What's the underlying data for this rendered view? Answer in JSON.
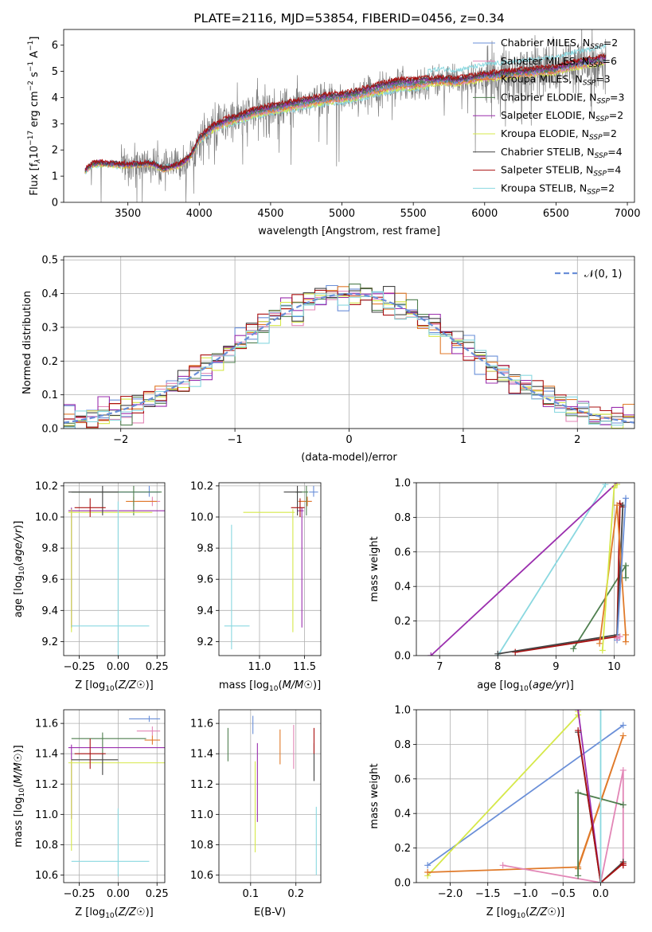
{
  "colors": {
    "chabrier_miles": "#6a8fd8",
    "salpeter_miles": "#e286b6",
    "kroupa_miles": "#e07a2a",
    "chabrier_elodie": "#4f7f4f",
    "salpeter_elodie": "#9b2fae",
    "kroupa_elodie": "#d6e84a",
    "chabrier_stelib": "#444444",
    "salpeter_stelib": "#aa1111",
    "kroupa_stelib": "#8ad8e0",
    "data": "#808080",
    "normal": "#6a8fd8"
  },
  "chart_data": [
    {
      "type": "line",
      "title": "PLATE=2116, MJD=53854, FIBERID=0456, z=0.34",
      "xlabel": "wavelength [Angstrom, rest frame]",
      "ylabel_parts": [
        "Flux [f",
        "λ",
        "10",
        "−17",
        " erg cm",
        "−2",
        " s",
        "−1",
        " A",
        "−1",
        "]"
      ],
      "xlim": [
        3050,
        7050
      ],
      "ylim": [
        0,
        6.6
      ],
      "xticks": [
        "3500",
        "4000",
        "4500",
        "5000",
        "5500",
        "6000",
        "6500",
        "7000"
      ],
      "yticks": [
        "0",
        "1",
        "2",
        "3",
        "4",
        "5",
        "6"
      ],
      "legend": [
        {
          "name": "Chabrier MILES, N",
          "sub": "SSP",
          "tail": "=2",
          "color": "chabrier_miles"
        },
        {
          "name": "Salpeter MILES, N",
          "sub": "SSP",
          "tail": "=6",
          "color": "salpeter_miles"
        },
        {
          "name": "Kroupa MILES, N",
          "sub": "SSP",
          "tail": "=3",
          "color": "kroupa_miles"
        },
        {
          "name": "Chabrier ELODIE, N",
          "sub": "SSP",
          "tail": "=3",
          "color": "chabrier_elodie"
        },
        {
          "name": "Salpeter ELODIE, N",
          "sub": "SSP",
          "tail": "=2",
          "color": "salpeter_elodie"
        },
        {
          "name": "Kroupa ELODIE, N",
          "sub": "SSP",
          "tail": "=2",
          "color": "kroupa_elodie"
        },
        {
          "name": "Chabrier STELIB, N",
          "sub": "SSP",
          "tail": "=4",
          "color": "chabrier_stelib"
        },
        {
          "name": "Salpeter STELIB, N",
          "sub": "SSP",
          "tail": "=4",
          "color": "salpeter_stelib"
        },
        {
          "name": "Kroupa STELIB, N",
          "sub": "SSP",
          "tail": "=2",
          "color": "kroupa_stelib"
        }
      ],
      "continuum": {
        "x": [
          3200,
          3250,
          3300,
          3400,
          3500,
          3600,
          3650,
          3700,
          3750,
          3800,
          3850,
          3900,
          3950,
          4000,
          4100,
          4200,
          4300,
          4400,
          4500,
          4600,
          4700,
          4800,
          4900,
          5000,
          5100,
          5200,
          5300,
          5400,
          5500,
          5600,
          5700,
          5800,
          5900,
          6000,
          6100,
          6200,
          6300,
          6400,
          6500,
          6600,
          6700,
          6800,
          6900
        ],
        "y": [
          1.2,
          1.45,
          1.5,
          1.45,
          1.42,
          1.45,
          1.48,
          1.4,
          1.25,
          1.35,
          1.4,
          1.55,
          1.85,
          2.4,
          2.85,
          3.1,
          3.25,
          3.45,
          3.55,
          3.65,
          3.75,
          3.85,
          3.95,
          4.0,
          4.1,
          4.25,
          4.4,
          4.5,
          4.5,
          4.6,
          4.65,
          4.6,
          4.7,
          4.8,
          4.85,
          4.9,
          4.95,
          5.0,
          5.05,
          5.2,
          5.3,
          5.4,
          5.5
        ]
      },
      "data_range": [
        3200,
        6850
      ]
    },
    {
      "type": "histogram",
      "xlabel": "(data-model)/error",
      "ylabel": "Normed distribution",
      "xlim": [
        -2.5,
        2.5
      ],
      "ylim": [
        0,
        0.51
      ],
      "xticks": [
        "−2",
        "−1",
        "0",
        "1",
        "2"
      ],
      "yticks": [
        "0.0",
        "0.1",
        "0.2",
        "0.3",
        "0.4",
        "0.5"
      ],
      "legend": [
        {
          "name": "𝒩(0, 1)",
          "color": "normal"
        }
      ],
      "bin_width": 0.1
    },
    {
      "type": "scatter",
      "xlabel": "Z [log10(Z/Z☉)]",
      "ylabel": "age [log10(age/yr)]",
      "xlim": [
        -0.35,
        0.3
      ],
      "ylim": [
        9.11,
        10.22
      ],
      "xticks": [
        "−0.25",
        "0.00",
        "0.25"
      ],
      "yticks": [
        "9.2",
        "9.4",
        "9.6",
        "9.8",
        "10.0",
        "10.2"
      ],
      "points": [
        {
          "x": 0.2,
          "y": 10.16,
          "xerr": [
            0.2,
            0.07
          ],
          "yerr": [
            0.03,
            0.04
          ],
          "color": "chabrier_miles"
        },
        {
          "x": 0.22,
          "y": 10.1,
          "xerr": [
            0.1,
            0.05
          ],
          "yerr": [
            0.03,
            0.03
          ],
          "color": "salpeter_miles"
        },
        {
          "x": 0.1,
          "y": 10.1,
          "xerr": [
            0.05,
            0.15
          ],
          "yerr": [
            0.03,
            0.03
          ],
          "color": "kroupa_miles"
        },
        {
          "x": 0.1,
          "y": 10.16,
          "xerr": [
            0.4,
            0.18
          ],
          "yerr": [
            0.15,
            0.04
          ],
          "color": "chabrier_elodie"
        },
        {
          "x": -0.3,
          "y": 10.04,
          "xerr": [
            0.02,
            0.6
          ],
          "yerr": [
            0.75,
            0.02
          ],
          "color": "salpeter_elodie"
        },
        {
          "x": -0.3,
          "y": 10.03,
          "xerr": [
            0.02,
            0.52
          ],
          "yerr": [
            0.77,
            0.02
          ],
          "color": "kroupa_elodie"
        },
        {
          "x": -0.1,
          "y": 10.16,
          "xerr": [
            0.22,
            0.1
          ],
          "yerr": [
            0.15,
            0.04
          ],
          "color": "chabrier_stelib"
        },
        {
          "x": -0.18,
          "y": 10.06,
          "xerr": [
            0.1,
            0.1
          ],
          "yerr": [
            0.06,
            0.06
          ],
          "color": "salpeter_stelib"
        },
        {
          "x": 0.0,
          "y": 9.3,
          "xerr": [
            0.3,
            0.2
          ],
          "yerr": [
            0.2,
            0.8
          ],
          "color": "kroupa_stelib"
        }
      ]
    },
    {
      "type": "scatter",
      "xlabel": "mass [log10(M/M☉)]",
      "ylabel": "",
      "xlim": [
        10.55,
        11.68
      ],
      "ylim": [
        9.11,
        10.22
      ],
      "xticks": [
        "11.0",
        "11.5"
      ],
      "yticks": [
        "9.2",
        "9.4",
        "9.6",
        "9.8",
        "10.0",
        "10.2"
      ],
      "points": [
        {
          "x": 11.6,
          "y": 10.16,
          "xerr": [
            0.05,
            0.05
          ],
          "yerr": [
            0.03,
            0.04
          ],
          "color": "chabrier_miles"
        },
        {
          "x": 11.53,
          "y": 10.1,
          "xerr": [
            0.1,
            0.05
          ],
          "yerr": [
            0.03,
            0.03
          ],
          "color": "salpeter_miles"
        },
        {
          "x": 11.53,
          "y": 10.1,
          "xerr": [
            0.1,
            0.05
          ],
          "yerr": [
            0.03,
            0.03
          ],
          "color": "kroupa_miles"
        },
        {
          "x": 11.52,
          "y": 10.16,
          "xerr": [
            0.12,
            0.02
          ],
          "yerr": [
            0.15,
            0.04
          ],
          "color": "chabrier_elodie"
        },
        {
          "x": 11.47,
          "y": 10.04,
          "xerr": [
            0.05,
            0.02
          ],
          "yerr": [
            0.75,
            0.02
          ],
          "color": "salpeter_elodie"
        },
        {
          "x": 11.37,
          "y": 10.03,
          "xerr": [
            0.55,
            0.02
          ],
          "yerr": [
            0.77,
            0.02
          ],
          "color": "kroupa_elodie"
        },
        {
          "x": 11.42,
          "y": 10.16,
          "xerr": [
            0.15,
            0.05
          ],
          "yerr": [
            0.15,
            0.04
          ],
          "color": "chabrier_stelib"
        },
        {
          "x": 11.45,
          "y": 10.06,
          "xerr": [
            0.1,
            0.05
          ],
          "yerr": [
            0.06,
            0.06
          ],
          "color": "salpeter_stelib"
        },
        {
          "x": 10.69,
          "y": 9.3,
          "xerr": [
            0.08,
            0.2
          ],
          "yerr": [
            0.15,
            0.65
          ],
          "color": "kroupa_stelib"
        }
      ]
    },
    {
      "type": "line",
      "xlabel": "age [log10(age/yr)]",
      "ylabel": "mass weight",
      "xlim": [
        6.6,
        10.35
      ],
      "ylim": [
        0,
        1
      ],
      "xticks": [
        "7",
        "8",
        "9",
        "10"
      ],
      "yticks": [
        "0.0",
        "0.2",
        "0.4",
        "0.6",
        "0.8",
        "1.0"
      ],
      "series": [
        {
          "color": "kroupa_stelib",
          "x": [
            8.0,
            9.85
          ],
          "y": [
            0.0,
            0.99
          ]
        },
        {
          "color": "salpeter_elodie",
          "x": [
            6.85,
            10.05
          ],
          "y": [
            0.0,
            1.0
          ]
        },
        {
          "color": "chabrier_elodie",
          "x": [
            9.3,
            10.2,
            10.2
          ],
          "y": [
            0.04,
            0.52,
            0.45
          ]
        },
        {
          "color": "salpeter_stelib",
          "x": [
            8.3,
            10.05,
            10.1,
            10.15
          ],
          "y": [
            0.02,
            0.11,
            0.88,
            0.86
          ]
        },
        {
          "color": "chabrier_stelib",
          "x": [
            8.0,
            10.05,
            10.15
          ],
          "y": [
            0.01,
            0.12,
            0.87
          ]
        },
        {
          "color": "kroupa_miles",
          "x": [
            9.75,
            10.05,
            10.2,
            10.2
          ],
          "y": [
            0.07,
            0.87,
            0.12,
            0.08
          ]
        },
        {
          "color": "kroupa_elodie",
          "x": [
            9.8,
            10.0,
            10.05
          ],
          "y": [
            0.03,
            0.97,
            0.99
          ]
        },
        {
          "color": "chabrier_miles",
          "x": [
            10.05,
            10.2
          ],
          "y": [
            0.09,
            0.91
          ]
        },
        {
          "color": "salpeter_miles",
          "x": [
            10.05,
            10.1
          ],
          "y": [
            0.1,
            0.11
          ]
        }
      ]
    },
    {
      "type": "scatter",
      "xlabel": "Z [log10(Z/Z☉)]",
      "ylabel": "mass [log10(M/M☉)]",
      "xlim": [
        -0.35,
        0.3
      ],
      "ylim": [
        10.55,
        11.69
      ],
      "xticks": [
        "−0.25",
        "0.00",
        "0.25"
      ],
      "yticks": [
        "10.6",
        "10.8",
        "11.0",
        "11.2",
        "11.4",
        "11.6"
      ],
      "points": [
        {
          "x": 0.2,
          "y": 11.63,
          "xerr": [
            0.13,
            0.07
          ],
          "yerr": [
            0.02,
            0.02
          ],
          "color": "chabrier_miles"
        },
        {
          "x": 0.22,
          "y": 11.55,
          "xerr": [
            0.1,
            0.05
          ],
          "yerr": [
            0.03,
            0.03
          ],
          "color": "salpeter_miles"
        },
        {
          "x": 0.22,
          "y": 11.49,
          "xerr": [
            0.05,
            0.05
          ],
          "yerr": [
            0.03,
            0.03
          ],
          "color": "kroupa_miles"
        },
        {
          "x": -0.1,
          "y": 11.5,
          "xerr": [
            0.2,
            0.28
          ],
          "yerr": [
            0.1,
            0.04
          ],
          "color": "chabrier_elodie"
        },
        {
          "x": -0.3,
          "y": 11.44,
          "xerr": [
            0.02,
            0.6
          ],
          "yerr": [
            0.47,
            0.02
          ],
          "color": "salpeter_elodie"
        },
        {
          "x": -0.3,
          "y": 11.34,
          "xerr": [
            0.02,
            0.6
          ],
          "yerr": [
            0.58,
            0.02
          ],
          "color": "kroupa_elodie"
        },
        {
          "x": -0.1,
          "y": 11.36,
          "xerr": [
            0.2,
            0.1
          ],
          "yerr": [
            0.1,
            0.04
          ],
          "color": "chabrier_stelib"
        },
        {
          "x": -0.18,
          "y": 11.4,
          "xerr": [
            0.1,
            0.1
          ],
          "yerr": [
            0.1,
            0.1
          ],
          "color": "salpeter_stelib"
        },
        {
          "x": 0.0,
          "y": 10.69,
          "xerr": [
            0.3,
            0.2
          ],
          "yerr": [
            0.1,
            0.35
          ],
          "color": "kroupa_stelib"
        }
      ]
    },
    {
      "type": "scatter",
      "xlabel": "E(B-V)",
      "ylabel": "",
      "xlim": [
        0.03,
        0.255
      ],
      "ylim": [
        10.55,
        11.69
      ],
      "xticks": [
        "0.1",
        "0.2"
      ],
      "yticks": [
        "10.6",
        "10.8",
        "11.0",
        "11.2",
        "11.4",
        "11.6"
      ],
      "points": [
        {
          "x": 0.105,
          "y": 11.6,
          "yerr": [
            0.07,
            0.05
          ],
          "color": "chabrier_miles"
        },
        {
          "x": 0.195,
          "y": 11.43,
          "yerr": [
            0.13,
            0.16
          ],
          "color": "salpeter_miles"
        },
        {
          "x": 0.165,
          "y": 11.45,
          "yerr": [
            0.12,
            0.11
          ],
          "color": "kroupa_miles"
        },
        {
          "x": 0.05,
          "y": 11.45,
          "yerr": [
            0.1,
            0.12
          ],
          "color": "chabrier_elodie"
        },
        {
          "x": 0.115,
          "y": 11.25,
          "yerr": [
            0.3,
            0.22
          ],
          "color": "salpeter_elodie"
        },
        {
          "x": 0.11,
          "y": 11.0,
          "yerr": [
            0.25,
            0.35
          ],
          "color": "kroupa_elodie"
        },
        {
          "x": 0.24,
          "y": 11.35,
          "yerr": [
            0.13,
            0.12
          ],
          "color": "chabrier_stelib"
        },
        {
          "x": 0.24,
          "y": 11.45,
          "yerr": [
            0.05,
            0.12
          ],
          "color": "salpeter_stelib"
        },
        {
          "x": 0.245,
          "y": 10.8,
          "yerr": [
            0.2,
            0.25
          ],
          "color": "kroupa_stelib"
        }
      ]
    },
    {
      "type": "line",
      "xlabel": "Z [log10(Z/Z☉)]",
      "ylabel": "mass weight",
      "xlim": [
        -2.45,
        0.45
      ],
      "ylim": [
        0,
        1
      ],
      "xticks": [
        "−2.0",
        "−1.5",
        "−1.0",
        "−0.5",
        "0.0"
      ],
      "yticks": [
        "0.0",
        "0.2",
        "0.4",
        "0.6",
        "0.8",
        "1.0"
      ],
      "series": [
        {
          "color": "chabrier_miles",
          "x": [
            -2.3,
            0.3
          ],
          "y": [
            0.1,
            0.91
          ]
        },
        {
          "color": "kroupa_elodie",
          "x": [
            -2.3,
            -0.3,
            -0.3
          ],
          "y": [
            0.04,
            0.97,
            0.99
          ]
        },
        {
          "color": "kroupa_miles",
          "x": [
            -2.3,
            -0.3,
            0.3,
            -0.3
          ],
          "y": [
            0.06,
            0.09,
            0.85,
            0.08
          ]
        },
        {
          "color": "salpeter_miles",
          "x": [
            -1.3,
            0.0,
            0.3,
            0.3
          ],
          "y": [
            0.1,
            0.0,
            0.65,
            0.1
          ]
        },
        {
          "color": "chabrier_elodie",
          "x": [
            -0.3,
            -0.3,
            0.3
          ],
          "y": [
            0.04,
            0.52,
            0.45
          ]
        },
        {
          "color": "salpeter_elodie",
          "x": [
            -0.3,
            0.0
          ],
          "y": [
            1.0,
            0.0
          ]
        },
        {
          "color": "chabrier_stelib",
          "x": [
            -0.3,
            0.0,
            0.3
          ],
          "y": [
            0.87,
            0.0,
            0.12
          ]
        },
        {
          "color": "salpeter_stelib",
          "x": [
            -0.3,
            0.0,
            0.3,
            0.3
          ],
          "y": [
            0.88,
            0.0,
            0.11,
            0.1
          ]
        },
        {
          "color": "kroupa_stelib",
          "x": [
            0.0,
            0.0
          ],
          "y": [
            0.0,
            1.0
          ]
        }
      ]
    }
  ]
}
